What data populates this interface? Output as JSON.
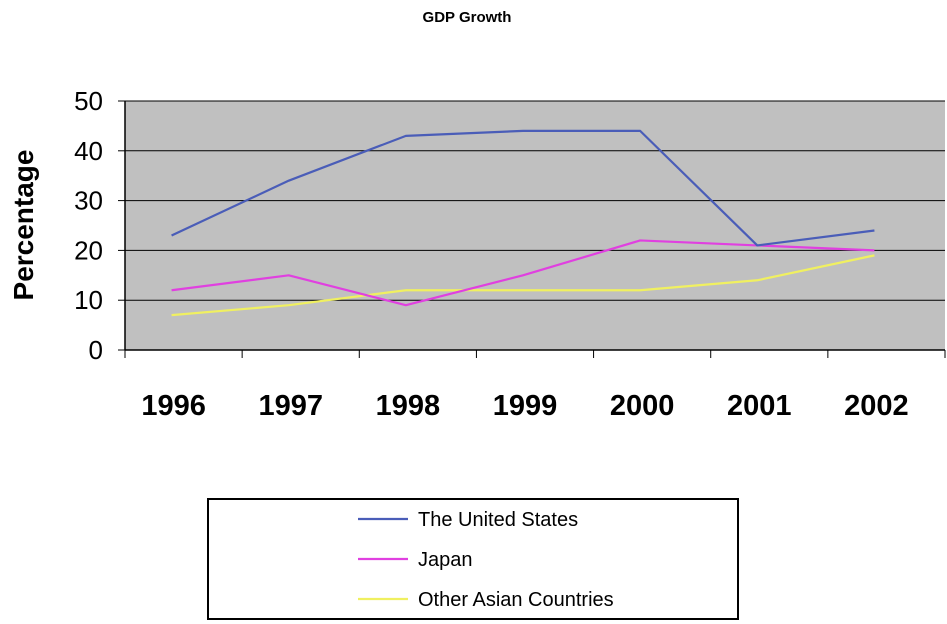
{
  "chart_data": {
    "type": "line",
    "title": "GDP Growth",
    "ylabel": "Percentage",
    "xlabel": "",
    "categories": [
      "1996",
      "1997",
      "1998",
      "1999",
      "2000",
      "2001",
      "2002"
    ],
    "ylim": [
      0,
      50
    ],
    "yticks": [
      "0",
      "10",
      "20",
      "30",
      "40",
      "50"
    ],
    "grid": true,
    "legend": "bottom",
    "series": [
      {
        "name": "The United States",
        "color": "#4a5db8",
        "values": [
          23,
          34,
          43,
          44,
          44,
          21,
          24
        ]
      },
      {
        "name": "Japan",
        "color": "#e040e0",
        "values": [
          12,
          15,
          9,
          15,
          22,
          21,
          20
        ]
      },
      {
        "name": "Other Asian Countries",
        "color": "#f0f060",
        "values": [
          7,
          9,
          12,
          12,
          12,
          14,
          19
        ]
      }
    ],
    "plot_background": "#c0c0c0"
  }
}
